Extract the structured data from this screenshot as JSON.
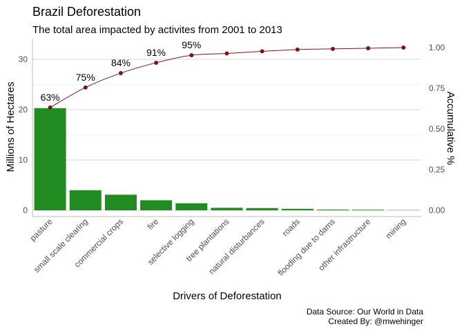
{
  "chart_data": {
    "type": "bar",
    "title": "Brazil Deforestation",
    "subtitle": "The total area impacted by activites from 2001 to 2013",
    "xlabel": "Drivers of Deforestation",
    "ylabel": "Millions of Hectares",
    "y2label": "Accumulative %",
    "categories": [
      "pasture",
      "small scale clearing",
      "commercial crops",
      "fire",
      "selective logging",
      "tree plantations",
      "natural disturbances",
      "roads",
      "flooding due to dams",
      "other infrastructure",
      "mining"
    ],
    "values": [
      20.3,
      4.0,
      3.1,
      2.0,
      1.4,
      0.5,
      0.45,
      0.3,
      0.15,
      0.12,
      0.05
    ],
    "cumulative": [
      0.632,
      0.755,
      0.843,
      0.907,
      0.953,
      0.964,
      0.977,
      0.988,
      0.992,
      0.996,
      1.0
    ],
    "cumulative_labels": [
      "63%",
      "75%",
      "84%",
      "91%",
      "95%"
    ],
    "ylim": [
      0,
      32.5
    ],
    "y_ticks": [
      "0",
      "10",
      "20",
      "30"
    ],
    "y_tick_values": [
      0,
      10,
      20,
      30
    ],
    "y2lim": [
      0,
      1.0
    ],
    "y2_ticks": [
      "0.00",
      "0.25",
      "0.50",
      "0.75",
      "1.00"
    ],
    "y2_tick_values": [
      0,
      0.25,
      0.5,
      0.75,
      1.0
    ],
    "bar_color": "#228B22",
    "line_color": "#7F1416",
    "grid": true,
    "legend": "none"
  },
  "caption": {
    "line1": "Data Source: Our World in Data",
    "line2": "Created By: @mwehinger"
  }
}
